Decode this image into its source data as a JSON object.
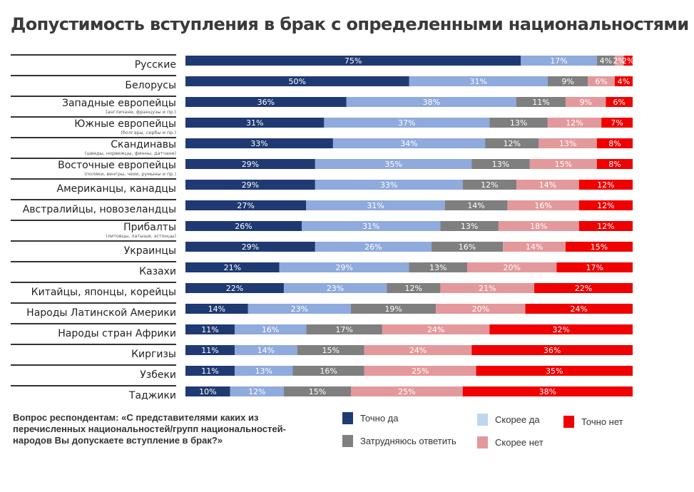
{
  "chart_data": {
    "type": "bar",
    "orientation": "horizontal",
    "stacked": true,
    "title": "Допустимость вступления в брак с определенными национальностями",
    "xlim": [
      0,
      100
    ],
    "unit": "%",
    "categories": [
      {
        "label": "Русские",
        "sub": ""
      },
      {
        "label": "Белорусы",
        "sub": ""
      },
      {
        "label": "Западные европейцы",
        "sub": "(англичане, французы и пр.)"
      },
      {
        "label": "Южные европейцы",
        "sub": "(болгары, сербы и пр.)"
      },
      {
        "label": "Скандинавы",
        "sub": "(шведы, норвежцы, финны, датчане)"
      },
      {
        "label": "Восточные европейцы",
        "sub": "(поляки, венгры, чехи, румыны и пр.)"
      },
      {
        "label": "Американцы, канадцы",
        "sub": ""
      },
      {
        "label": "Австралийцы, новозеландцы",
        "sub": ""
      },
      {
        "label": "Прибалты",
        "sub": "(литовцы, латыши, эстонцы)"
      },
      {
        "label": "Украинцы",
        "sub": ""
      },
      {
        "label": "Казахи",
        "sub": ""
      },
      {
        "label": "Китайцы, японцы, корейцы",
        "sub": ""
      },
      {
        "label": "Народы Латинской Америки",
        "sub": ""
      },
      {
        "label": "Народы стран Африки",
        "sub": ""
      },
      {
        "label": "Киргизы",
        "sub": ""
      },
      {
        "label": "Узбеки",
        "sub": ""
      },
      {
        "label": "Таджики",
        "sub": ""
      }
    ],
    "series": [
      {
        "name": "Точно да",
        "color": "#1f3a73",
        "values": [
          75,
          50,
          36,
          31,
          33,
          29,
          29,
          27,
          26,
          29,
          21,
          22,
          14,
          11,
          11,
          11,
          10
        ]
      },
      {
        "name": "Скорее да",
        "color": "#8faadc",
        "values": [
          17,
          31,
          38,
          37,
          34,
          35,
          33,
          31,
          31,
          26,
          29,
          23,
          23,
          16,
          14,
          13,
          12
        ]
      },
      {
        "name": "Затрудняюсь ответить",
        "color": "#7f7f7f",
        "values": [
          4,
          9,
          11,
          13,
          12,
          13,
          12,
          14,
          13,
          16,
          13,
          12,
          19,
          17,
          15,
          16,
          15
        ]
      },
      {
        "name": "Скорее нет",
        "color": "#e3999b",
        "values": [
          2,
          6,
          9,
          12,
          13,
          15,
          14,
          16,
          18,
          14,
          20,
          21,
          20,
          24,
          24,
          25,
          25
        ]
      },
      {
        "name": "Точно нет",
        "color": "#f00000",
        "values": [
          2,
          4,
          6,
          7,
          8,
          8,
          12,
          12,
          12,
          15,
          17,
          22,
          24,
          32,
          36,
          35,
          38
        ]
      }
    ],
    "legend_placement": "bottom-right",
    "legend_order": [
      0,
      1,
      4,
      2,
      3
    ],
    "legend_swatch_colors": {
      "Скорее да": "#bdd7ee"
    }
  },
  "question": "Вопрос респондентам: «С представителями каких из перечисленных национальностей/групп национальностей-народов Вы допускаете вступление в брак?»"
}
